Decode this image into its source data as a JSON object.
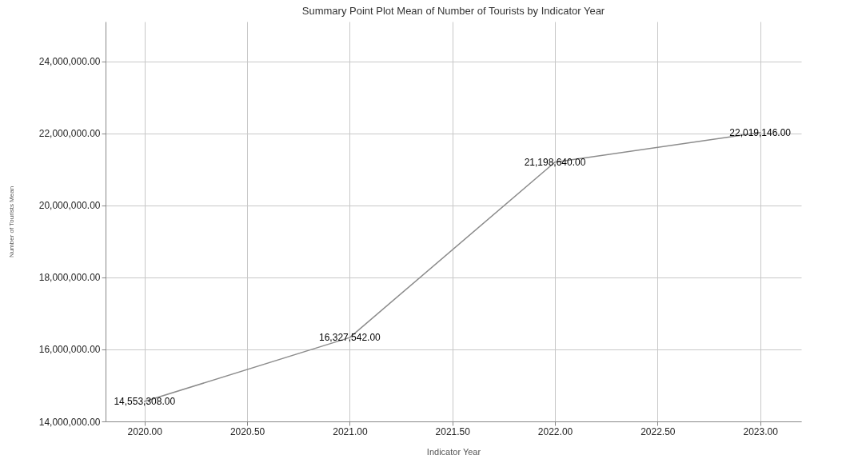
{
  "chart_data": {
    "type": "line",
    "title": "Summary Point Plot Mean of Number of Tourists by Indicator Year",
    "xlabel": "Indicator Year",
    "ylabel": "Number of Tourists Mean",
    "x": [
      2020,
      2021,
      2022,
      2023
    ],
    "series": [
      {
        "color": "#8c8c8c",
        "values": [
          14553308,
          16327542,
          21198640,
          22019146
        ],
        "value_labels": [
          "14,553,308.00",
          "16,327,542.00",
          "21,198,640.00",
          "22,019,146.00"
        ]
      }
    ],
    "xlim": [
      2019.81,
      2023.2
    ],
    "xticks": [
      {
        "value": 2020,
        "label": "2020.00"
      },
      {
        "value": 2020.5,
        "label": "2020.50"
      },
      {
        "value": 2021,
        "label": "2021.00"
      },
      {
        "value": 2021.5,
        "label": "2021.50"
      },
      {
        "value": 2022,
        "label": "2022.00"
      },
      {
        "value": 2022.5,
        "label": "2022.50"
      },
      {
        "value": 2023,
        "label": "2023.00"
      }
    ],
    "ylim": [
      14000000,
      25100000
    ],
    "yticks": [
      {
        "value": 14000000,
        "label": "14,000,000.00"
      },
      {
        "value": 16000000,
        "label": "16,000,000.00"
      },
      {
        "value": 18000000,
        "label": "18,000,000.00"
      },
      {
        "value": 20000000,
        "label": "20,000,000.00"
      },
      {
        "value": 22000000,
        "label": "22,000,000.00"
      },
      {
        "value": 24000000,
        "label": "24,000,000.00"
      }
    ],
    "grid": true,
    "marker": "none",
    "line_style": "solid"
  }
}
